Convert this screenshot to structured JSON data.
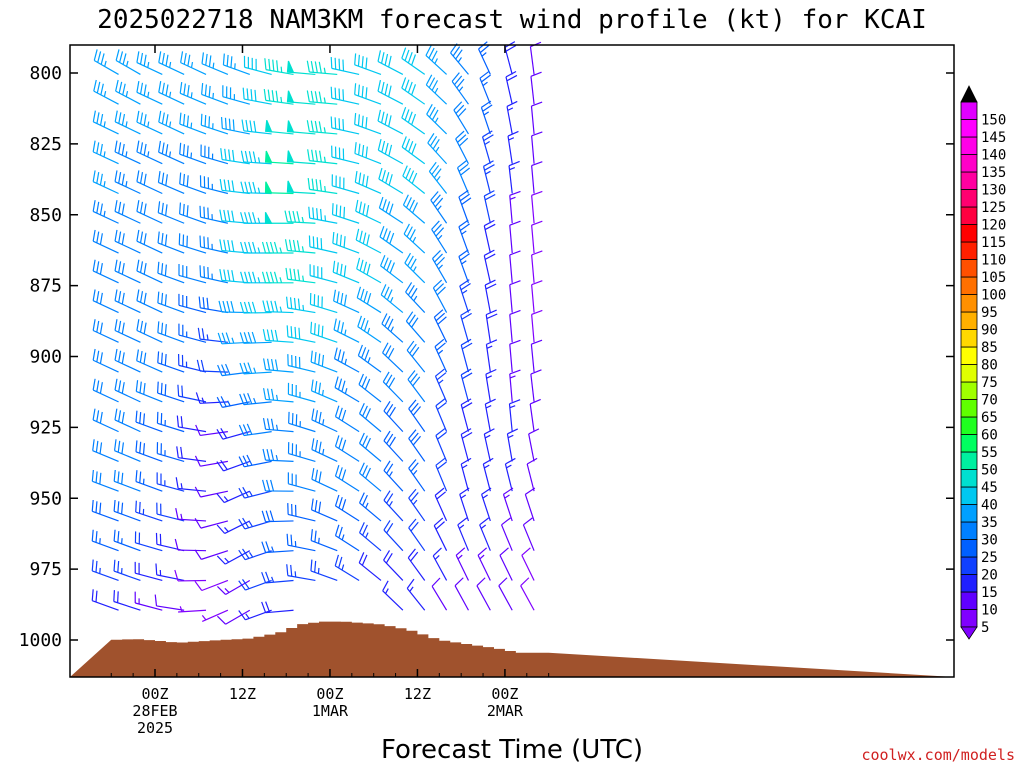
{
  "chart_data": {
    "type": "wind-barb-profile",
    "title": "2025022718 NAM3KM forecast wind profile (kt) for KCAI",
    "xlabel": "Forecast Time (UTC)",
    "ylabel": "",
    "y_units": "hPa",
    "y_ticks": [
      800,
      825,
      850,
      875,
      900,
      925,
      950,
      975,
      1000
    ],
    "y_range": [
      1013,
      790
    ],
    "x_ticks": [
      {
        "line1": "00Z",
        "line2": "28FEB",
        "line3": "2025",
        "hour": 0
      },
      {
        "line1": "12Z",
        "line2": "",
        "line3": "",
        "hour": 12
      },
      {
        "line1": "00Z",
        "line2": "1MAR",
        "line3": "",
        "hour": 24
      },
      {
        "line1": "12Z",
        "line2": "",
        "line3": "",
        "hour": 36
      },
      {
        "line1": "00Z",
        "line2": "2MAR",
        "line3": "",
        "hour": 48
      }
    ],
    "x_range_hours": [
      -6,
      54
    ],
    "colorbar_levels": [
      5,
      10,
      15,
      20,
      25,
      30,
      35,
      40,
      45,
      50,
      55,
      60,
      65,
      70,
      75,
      80,
      85,
      90,
      95,
      100,
      105,
      110,
      115,
      120,
      125,
      130,
      135,
      140,
      145,
      150
    ],
    "colorbar_colors": [
      "#8000ff",
      "#6000ff",
      "#2020ff",
      "#1040ff",
      "#0060ff",
      "#0080ff",
      "#00a0ff",
      "#00c8f0",
      "#00e0d0",
      "#00f0a0",
      "#00ff60",
      "#20ff20",
      "#60ff00",
      "#a0ff00",
      "#e0ff00",
      "#ffff00",
      "#ffd800",
      "#ffb000",
      "#ff9000",
      "#ff7000",
      "#ff5000",
      "#ff2000",
      "#ff0000",
      "#ff0040",
      "#ff0070",
      "#ff00a0",
      "#ff00c8",
      "#ff00e8",
      "#ff00ff",
      "#e000ff"
    ],
    "surface_pressure": [
      {
        "hour": -6,
        "p": 1000
      },
      {
        "hour": -4,
        "p": 999.8
      },
      {
        "hour": -2.5,
        "p": 999.7
      },
      {
        "hour": 1.5,
        "p": 1000.5
      },
      {
        "hour": 3,
        "p": 1001
      },
      {
        "hour": 9,
        "p": 1000
      },
      {
        "hour": 13,
        "p": 999.5
      },
      {
        "hour": 17,
        "p": 997.5
      },
      {
        "hour": 20,
        "p": 994.5
      },
      {
        "hour": 23,
        "p": 993.5
      },
      {
        "hour": 26,
        "p": 993.5
      },
      {
        "hour": 31,
        "p": 994.5
      },
      {
        "hour": 35,
        "p": 996.5
      },
      {
        "hour": 39,
        "p": 1000
      },
      {
        "hour": 43,
        "p": 1001.5
      },
      {
        "hour": 47,
        "p": 1003
      },
      {
        "hour": 50,
        "p": 1004.5
      },
      {
        "hour": 54,
        "p": 1004.5
      }
    ],
    "wind_grid": {
      "hours": [
        -5,
        -3,
        -1,
        1,
        3,
        5,
        7,
        9,
        11,
        13,
        15,
        17,
        19,
        21,
        23,
        25,
        27,
        29,
        31,
        33,
        35,
        37,
        39,
        41,
        43,
        45,
        47,
        49,
        51,
        53
      ],
      "levels": [
        800,
        825,
        850,
        875,
        900,
        925,
        950,
        975,
        995
      ],
      "speed_kt": [
        [
          35,
          35,
          35,
          35,
          35,
          35,
          35,
          35,
          35,
          35,
          40,
          40,
          45,
          50,
          45,
          45,
          40,
          40,
          40,
          40,
          40,
          40,
          40,
          35,
          35,
          30,
          20,
          20,
          15,
          10
        ],
        [
          35,
          35,
          35,
          35,
          35,
          35,
          35,
          35,
          35,
          40,
          40,
          45,
          50,
          50,
          50,
          45,
          40,
          40,
          40,
          40,
          40,
          40,
          35,
          35,
          30,
          30,
          20,
          15,
          10,
          10
        ],
        [
          35,
          35,
          30,
          30,
          30,
          30,
          30,
          30,
          35,
          40,
          40,
          45,
          50,
          50,
          45,
          45,
          40,
          40,
          40,
          40,
          40,
          40,
          35,
          35,
          30,
          25,
          20,
          15,
          10,
          10
        ],
        [
          30,
          30,
          30,
          30,
          30,
          30,
          30,
          30,
          35,
          40,
          40,
          45,
          45,
          45,
          45,
          40,
          40,
          40,
          40,
          40,
          35,
          35,
          35,
          30,
          25,
          20,
          15,
          10,
          10,
          5
        ],
        [
          30,
          30,
          30,
          30,
          30,
          30,
          25,
          20,
          25,
          35,
          35,
          40,
          40,
          40,
          40,
          40,
          35,
          35,
          35,
          35,
          30,
          30,
          30,
          25,
          20,
          20,
          15,
          10,
          10,
          10
        ],
        [
          30,
          30,
          30,
          30,
          30,
          25,
          20,
          10,
          15,
          20,
          30,
          35,
          35,
          35,
          35,
          35,
          35,
          30,
          30,
          30,
          30,
          30,
          25,
          20,
          20,
          15,
          15,
          15,
          10,
          10
        ],
        [
          30,
          30,
          30,
          25,
          25,
          20,
          15,
          10,
          10,
          15,
          20,
          25,
          30,
          30,
          30,
          30,
          30,
          30,
          30,
          25,
          25,
          25,
          20,
          20,
          15,
          15,
          15,
          15,
          10,
          10
        ],
        [
          25,
          25,
          25,
          20,
          20,
          15,
          10,
          10,
          10,
          15,
          20,
          25,
          25,
          25,
          25,
          25,
          25,
          25,
          20,
          20,
          20,
          20,
          20,
          15,
          15,
          15,
          15,
          10,
          10,
          10
        ],
        [
          15,
          15,
          15,
          10,
          10,
          10,
          5,
          5,
          5,
          10,
          15,
          15,
          15,
          15,
          15,
          15,
          15,
          15,
          15,
          15,
          15,
          15,
          10,
          10,
          10,
          10,
          10,
          10,
          10,
          5
        ]
      ],
      "dir_deg": [
        [
          300,
          300,
          300,
          295,
          295,
          295,
          295,
          295,
          290,
          290,
          285,
          285,
          280,
          275,
          275,
          275,
          280,
          285,
          290,
          295,
          300,
          305,
          310,
          315,
          320,
          330,
          340,
          345,
          350,
          355
        ],
        [
          295,
          295,
          295,
          295,
          295,
          295,
          290,
          290,
          285,
          280,
          275,
          275,
          275,
          275,
          275,
          275,
          280,
          285,
          290,
          295,
          300,
          305,
          310,
          320,
          330,
          340,
          345,
          350,
          355,
          355
        ],
        [
          295,
          295,
          295,
          295,
          295,
          290,
          290,
          285,
          280,
          275,
          270,
          270,
          270,
          270,
          275,
          280,
          285,
          290,
          295,
          300,
          305,
          310,
          320,
          330,
          340,
          345,
          350,
          355,
          355,
          355
        ],
        [
          295,
          295,
          295,
          295,
          290,
          290,
          285,
          285,
          280,
          275,
          270,
          270,
          270,
          275,
          280,
          285,
          290,
          295,
          300,
          305,
          310,
          315,
          325,
          335,
          340,
          345,
          350,
          355,
          355,
          355
        ],
        [
          295,
          295,
          295,
          295,
          290,
          290,
          285,
          280,
          270,
          265,
          265,
          270,
          275,
          280,
          285,
          290,
          295,
          300,
          305,
          310,
          315,
          320,
          330,
          340,
          345,
          350,
          355,
          355,
          355,
          355
        ],
        [
          295,
          295,
          295,
          290,
          290,
          285,
          280,
          270,
          255,
          255,
          260,
          265,
          275,
          285,
          290,
          295,
          300,
          305,
          310,
          315,
          320,
          325,
          335,
          340,
          345,
          350,
          350,
          355,
          355,
          350
        ],
        [
          290,
          290,
          290,
          290,
          285,
          285,
          275,
          265,
          250,
          245,
          250,
          260,
          270,
          280,
          290,
          295,
          300,
          305,
          310,
          315,
          320,
          325,
          335,
          340,
          345,
          345,
          345,
          345,
          345,
          345
        ],
        [
          290,
          290,
          290,
          285,
          285,
          280,
          270,
          255,
          245,
          240,
          245,
          255,
          265,
          275,
          285,
          290,
          300,
          305,
          310,
          315,
          320,
          325,
          330,
          335,
          335,
          335,
          335,
          335,
          335,
          335
        ],
        [
          290,
          290,
          285,
          285,
          280,
          275,
          265,
          250,
          240,
          240,
          245,
          255,
          265,
          275,
          285,
          290,
          295,
          300,
          305,
          310,
          315,
          320,
          325,
          330,
          330,
          330,
          330,
          330,
          330,
          330
        ]
      ]
    },
    "surface_fill_color": "#a0522d"
  },
  "footer": {
    "credit": "coolwx.com/models",
    "credit_color": "#d02020"
  }
}
